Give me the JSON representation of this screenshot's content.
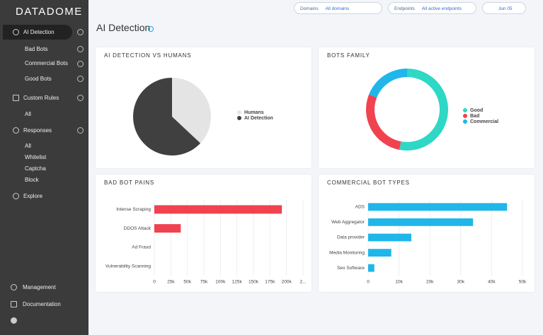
{
  "sidebar": {
    "logo": "DATADOME",
    "menu": [
      "AI Detection",
      "Bad Bots",
      "Commercial Bots",
      "Good Bots",
      "Custom Rules",
      "All",
      "Responses",
      "All",
      "Whitelist",
      "Captcha",
      "Block",
      "Explore"
    ],
    "footer": [
      "Management",
      "Documentation"
    ]
  },
  "topbar": {
    "filters": [
      {
        "label": "Domains",
        "value": "All domains"
      },
      {
        "label": "Endpoints",
        "value": "All active endpoints"
      },
      {
        "value": "Jun 05"
      }
    ]
  },
  "page_title": "AI Detection",
  "chart_data": [
    {
      "type": "pie",
      "title": "AI DETECTION VS HUMANS",
      "categories": [
        "Humans",
        "AI Detection"
      ],
      "values": [
        37,
        63
      ],
      "colors": [
        "#e4e4e4",
        "#404040"
      ]
    },
    {
      "type": "donut",
      "title": "BOTS FAMILY",
      "categories": [
        "Good",
        "Bad",
        "Commercial"
      ],
      "values": [
        53,
        28,
        19
      ],
      "colors": [
        "#2ed8c4",
        "#f0424f",
        "#1fb6ea"
      ]
    },
    {
      "type": "bar",
      "orientation": "horizontal",
      "title": "BAD BOT PAINS",
      "categories": [
        "Intense Scraping",
        "DDOS Attack",
        "Ad Fraud",
        "Vulnerability Scanning"
      ],
      "values": [
        193000,
        40000,
        0,
        0
      ],
      "color": "#f0424f",
      "xlim": [
        0,
        225000
      ],
      "xticks": [
        0,
        {
          "value": 25000,
          "label": "25k"
        },
        {
          "value": 50000,
          "label": "50k"
        },
        {
          "value": 75000,
          "label": "75k"
        },
        {
          "value": 100000,
          "label": "100k"
        },
        {
          "value": 125000,
          "label": "125k"
        },
        {
          "value": 150000,
          "label": "150k"
        },
        {
          "value": 175000,
          "label": "175k"
        },
        {
          "value": 200000,
          "label": "200k"
        },
        {
          "value": 225000,
          "label": "2..."
        }
      ],
      "grid": true
    },
    {
      "type": "bar",
      "orientation": "horizontal",
      "title": "COMMERCIAL BOT TYPES",
      "categories": [
        "ADS",
        "Web Aggregator",
        "Data provider",
        "Media Monitoring",
        "Seo Software"
      ],
      "values": [
        45000,
        34000,
        14000,
        7500,
        2000
      ],
      "color": "#1fb6ea",
      "xlim": [
        0,
        50000
      ],
      "xticks": [
        0,
        {
          "value": 10000,
          "label": "10k"
        },
        {
          "value": 20000,
          "label": "20k"
        },
        {
          "value": 30000,
          "label": "30k"
        },
        {
          "value": 40000,
          "label": "40k"
        },
        {
          "value": 50000,
          "label": "50k"
        }
      ],
      "grid": true
    }
  ]
}
